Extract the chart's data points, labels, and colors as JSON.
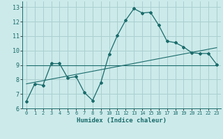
{
  "xlabel": "Humidex (Indice chaleur)",
  "bg_color": "#cceaea",
  "line_color": "#1a6b6b",
  "grid_color": "#aacfcf",
  "xlim": [
    -0.5,
    23.5
  ],
  "ylim": [
    6,
    13.4
  ],
  "xticks": [
    0,
    1,
    2,
    3,
    4,
    5,
    6,
    7,
    8,
    9,
    10,
    11,
    12,
    13,
    14,
    15,
    16,
    17,
    18,
    19,
    20,
    21,
    22,
    23
  ],
  "yticks": [
    6,
    7,
    8,
    9,
    10,
    11,
    12,
    13
  ],
  "line1_x": [
    0,
    1,
    2,
    3,
    4,
    5,
    6,
    7,
    8,
    9,
    10,
    11,
    12,
    13,
    14,
    15,
    16,
    17,
    18,
    19,
    20,
    21,
    22,
    23
  ],
  "line1_y": [
    6.5,
    7.7,
    7.6,
    9.1,
    9.1,
    8.1,
    8.2,
    7.1,
    6.55,
    7.8,
    9.75,
    11.05,
    12.1,
    12.9,
    12.6,
    12.65,
    11.75,
    10.65,
    10.55,
    10.25,
    9.85,
    9.8,
    9.8,
    9.05
  ],
  "line2_x": [
    0,
    23
  ],
  "line2_y": [
    9.0,
    9.0
  ],
  "line3_x": [
    0,
    23
  ],
  "line3_y": [
    7.7,
    10.2
  ]
}
